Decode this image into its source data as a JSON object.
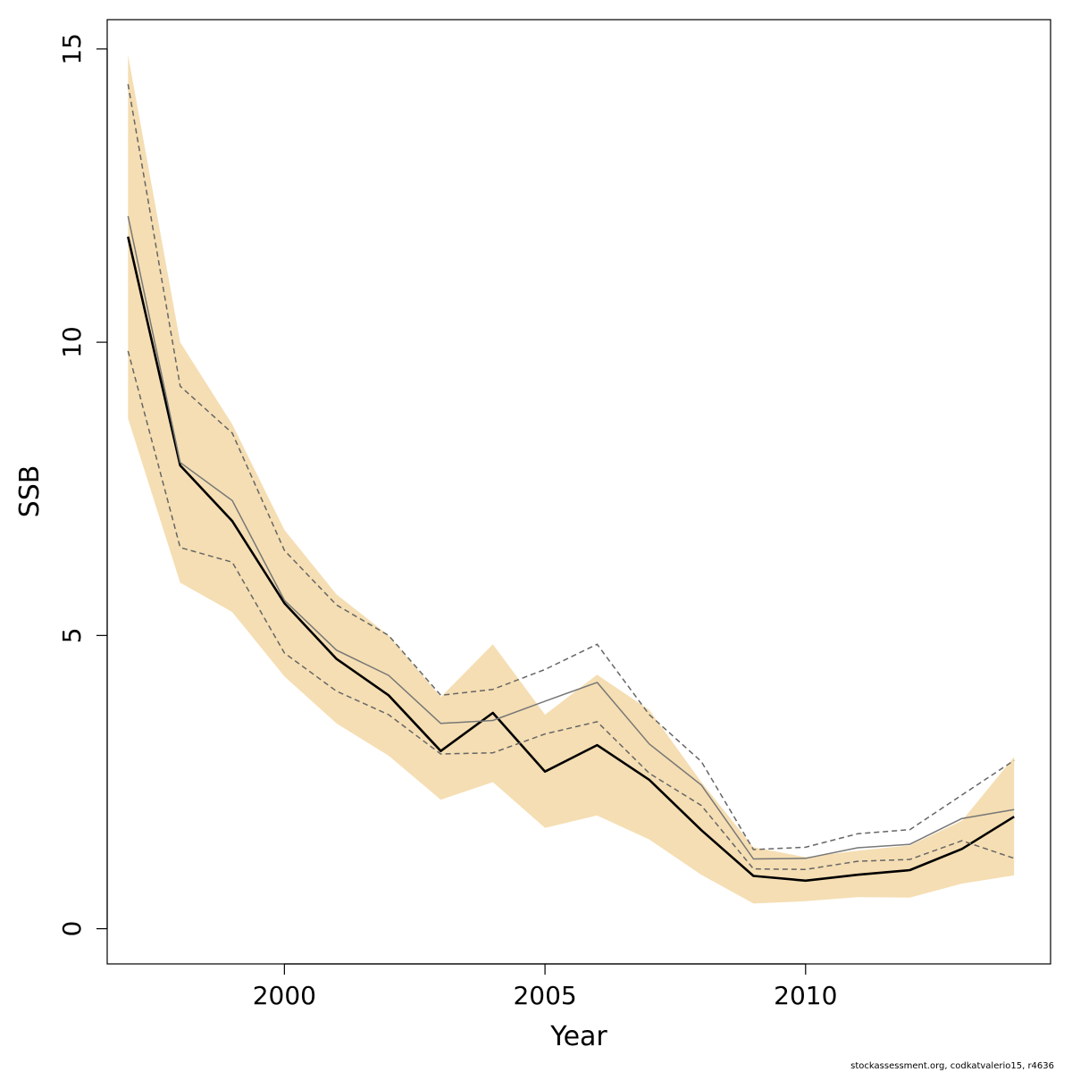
{
  "chart_data": {
    "type": "line",
    "title": "",
    "xlabel": "Year",
    "ylabel": "SSB",
    "xlim": [
      1996.6,
      2014.7
    ],
    "ylim": [
      -0.6,
      15.5
    ],
    "x_ticks": [
      2000,
      2005,
      2010
    ],
    "y_ticks": [
      0,
      5,
      10,
      15
    ],
    "grid": false,
    "legend": "none",
    "x": [
      1997,
      1998,
      1999,
      2000,
      2001,
      2002,
      2003,
      2004,
      2005,
      2006,
      2007,
      2008,
      2009,
      2010,
      2011,
      2012,
      2013,
      2014
    ],
    "series": [
      {
        "role": "band",
        "color": "#f5deb3",
        "lower": [
          8.7,
          5.9,
          5.4,
          4.3,
          3.5,
          2.95,
          2.2,
          2.5,
          1.72,
          1.93,
          1.52,
          0.92,
          0.43,
          0.47,
          0.54,
          0.53,
          0.77,
          0.91
        ],
        "upper": [
          14.9,
          10.0,
          8.6,
          6.8,
          5.7,
          5.0,
          3.95,
          4.85,
          3.65,
          4.33,
          3.73,
          2.5,
          1.39,
          1.22,
          1.33,
          1.42,
          1.84,
          2.93
        ]
      },
      {
        "role": "estimate",
        "color": "#000000",
        "style": "solid",
        "values": [
          11.8,
          7.9,
          6.95,
          5.55,
          4.6,
          3.98,
          3.03,
          3.68,
          2.68,
          3.13,
          2.54,
          1.68,
          0.9,
          0.82,
          0.92,
          1.0,
          1.36,
          1.91
        ]
      },
      {
        "role": "alt-estimate",
        "color": "#777777",
        "style": "solid",
        "values": [
          12.15,
          7.95,
          7.3,
          5.6,
          4.75,
          4.32,
          3.5,
          3.55,
          3.88,
          4.2,
          3.15,
          2.45,
          1.19,
          1.2,
          1.38,
          1.44,
          1.88,
          2.03
        ]
      },
      {
        "role": "alt-upper",
        "color": "#666666",
        "style": "dashed",
        "values": [
          14.4,
          9.25,
          8.45,
          6.45,
          5.52,
          5.0,
          3.98,
          4.08,
          4.42,
          4.85,
          3.65,
          2.85,
          1.35,
          1.39,
          1.62,
          1.69,
          2.28,
          2.87
        ]
      },
      {
        "role": "alt-lower",
        "color": "#666666",
        "style": "dashed",
        "values": [
          9.85,
          6.5,
          6.25,
          4.7,
          4.05,
          3.65,
          2.98,
          3.0,
          3.32,
          3.53,
          2.65,
          2.1,
          1.02,
          1.01,
          1.15,
          1.18,
          1.5,
          1.2
        ]
      }
    ]
  },
  "footnote": "stockassessment.org, codkatvalerio15, r4636"
}
